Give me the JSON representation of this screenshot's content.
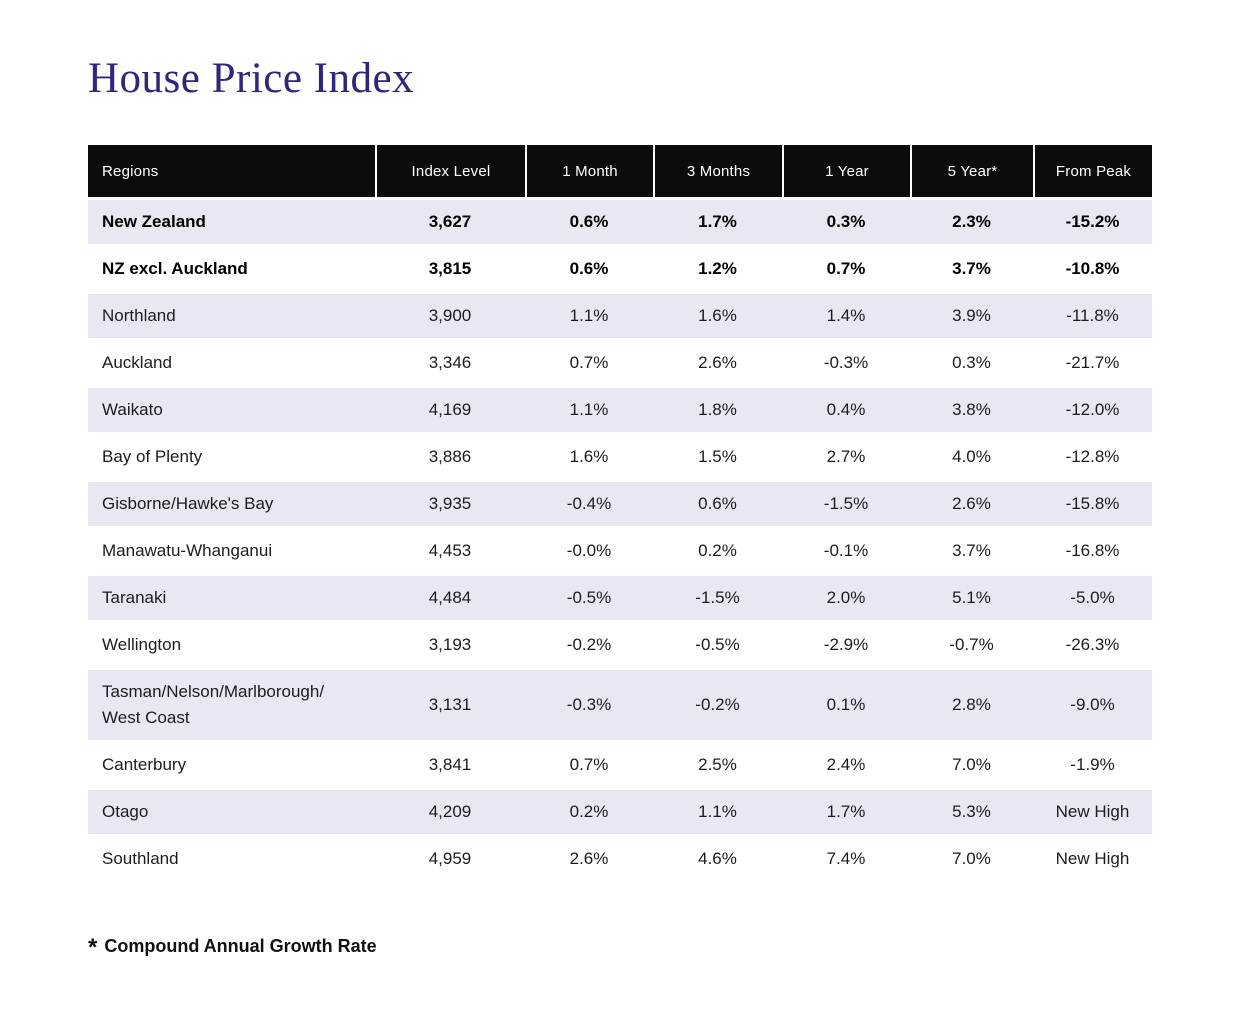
{
  "colors": {
    "title": "#2d2483",
    "header_bg": "#0c0c0c",
    "header_text": "#ffffff",
    "stripe": "#e9e7f2",
    "body_text": "#1c1c1e"
  },
  "chart_data": {
    "type": "table",
    "title": "House Price Index",
    "columns": [
      "Regions",
      "Index Level",
      "1 Month",
      "3 Months",
      "1 Year",
      "5 Year*",
      "From Peak"
    ],
    "rows": [
      {
        "region": "New Zealand",
        "values": [
          "3,627",
          "0.6%",
          "1.7%",
          "0.3%",
          "2.3%",
          "-15.2%"
        ],
        "emphasis": true
      },
      {
        "region": "NZ excl. Auckland",
        "values": [
          "3,815",
          "0.6%",
          "1.2%",
          "0.7%",
          "3.7%",
          "-10.8%"
        ],
        "emphasis": true
      },
      {
        "region": "Northland",
        "values": [
          "3,900",
          "1.1%",
          "1.6%",
          "1.4%",
          "3.9%",
          "-11.8%"
        ],
        "emphasis": false
      },
      {
        "region": "Auckland",
        "values": [
          "3,346",
          "0.7%",
          "2.6%",
          "-0.3%",
          "0.3%",
          "-21.7%"
        ],
        "emphasis": false
      },
      {
        "region": "Waikato",
        "values": [
          "4,169",
          "1.1%",
          "1.8%",
          "0.4%",
          "3.8%",
          "-12.0%"
        ],
        "emphasis": false
      },
      {
        "region": "Bay of Plenty",
        "values": [
          "3,886",
          "1.6%",
          "1.5%",
          "2.7%",
          "4.0%",
          "-12.8%"
        ],
        "emphasis": false
      },
      {
        "region": "Gisborne/Hawke's Bay",
        "values": [
          "3,935",
          "-0.4%",
          "0.6%",
          "-1.5%",
          "2.6%",
          "-15.8%"
        ],
        "emphasis": false
      },
      {
        "region": "Manawatu-Whanganui",
        "values": [
          "4,453",
          "-0.0%",
          "0.2%",
          "-0.1%",
          "3.7%",
          "-16.8%"
        ],
        "emphasis": false
      },
      {
        "region": "Taranaki",
        "values": [
          "4,484",
          "-0.5%",
          "-1.5%",
          "2.0%",
          "5.1%",
          "-5.0%"
        ],
        "emphasis": false
      },
      {
        "region": "Wellington",
        "values": [
          "3,193",
          "-0.2%",
          "-0.5%",
          "-2.9%",
          "-0.7%",
          "-26.3%"
        ],
        "emphasis": false
      },
      {
        "region": "Tasman/Nelson/Marlborough/\nWest Coast",
        "values": [
          "3,131",
          "-0.3%",
          "-0.2%",
          "0.1%",
          "2.8%",
          "-9.0%"
        ],
        "emphasis": false
      },
      {
        "region": "Canterbury",
        "values": [
          "3,841",
          "0.7%",
          "2.5%",
          "2.4%",
          "7.0%",
          "-1.9%"
        ],
        "emphasis": false
      },
      {
        "region": "Otago",
        "values": [
          "4,209",
          "0.2%",
          "1.1%",
          "1.7%",
          "5.3%",
          "New High"
        ],
        "emphasis": false
      },
      {
        "region": "Southland",
        "values": [
          "4,959",
          "2.6%",
          "4.6%",
          "7.4%",
          "7.0%",
          "New High"
        ],
        "emphasis": false
      }
    ],
    "footnote_marker": "*",
    "footnote_text": "Compound Annual Growth Rate"
  }
}
